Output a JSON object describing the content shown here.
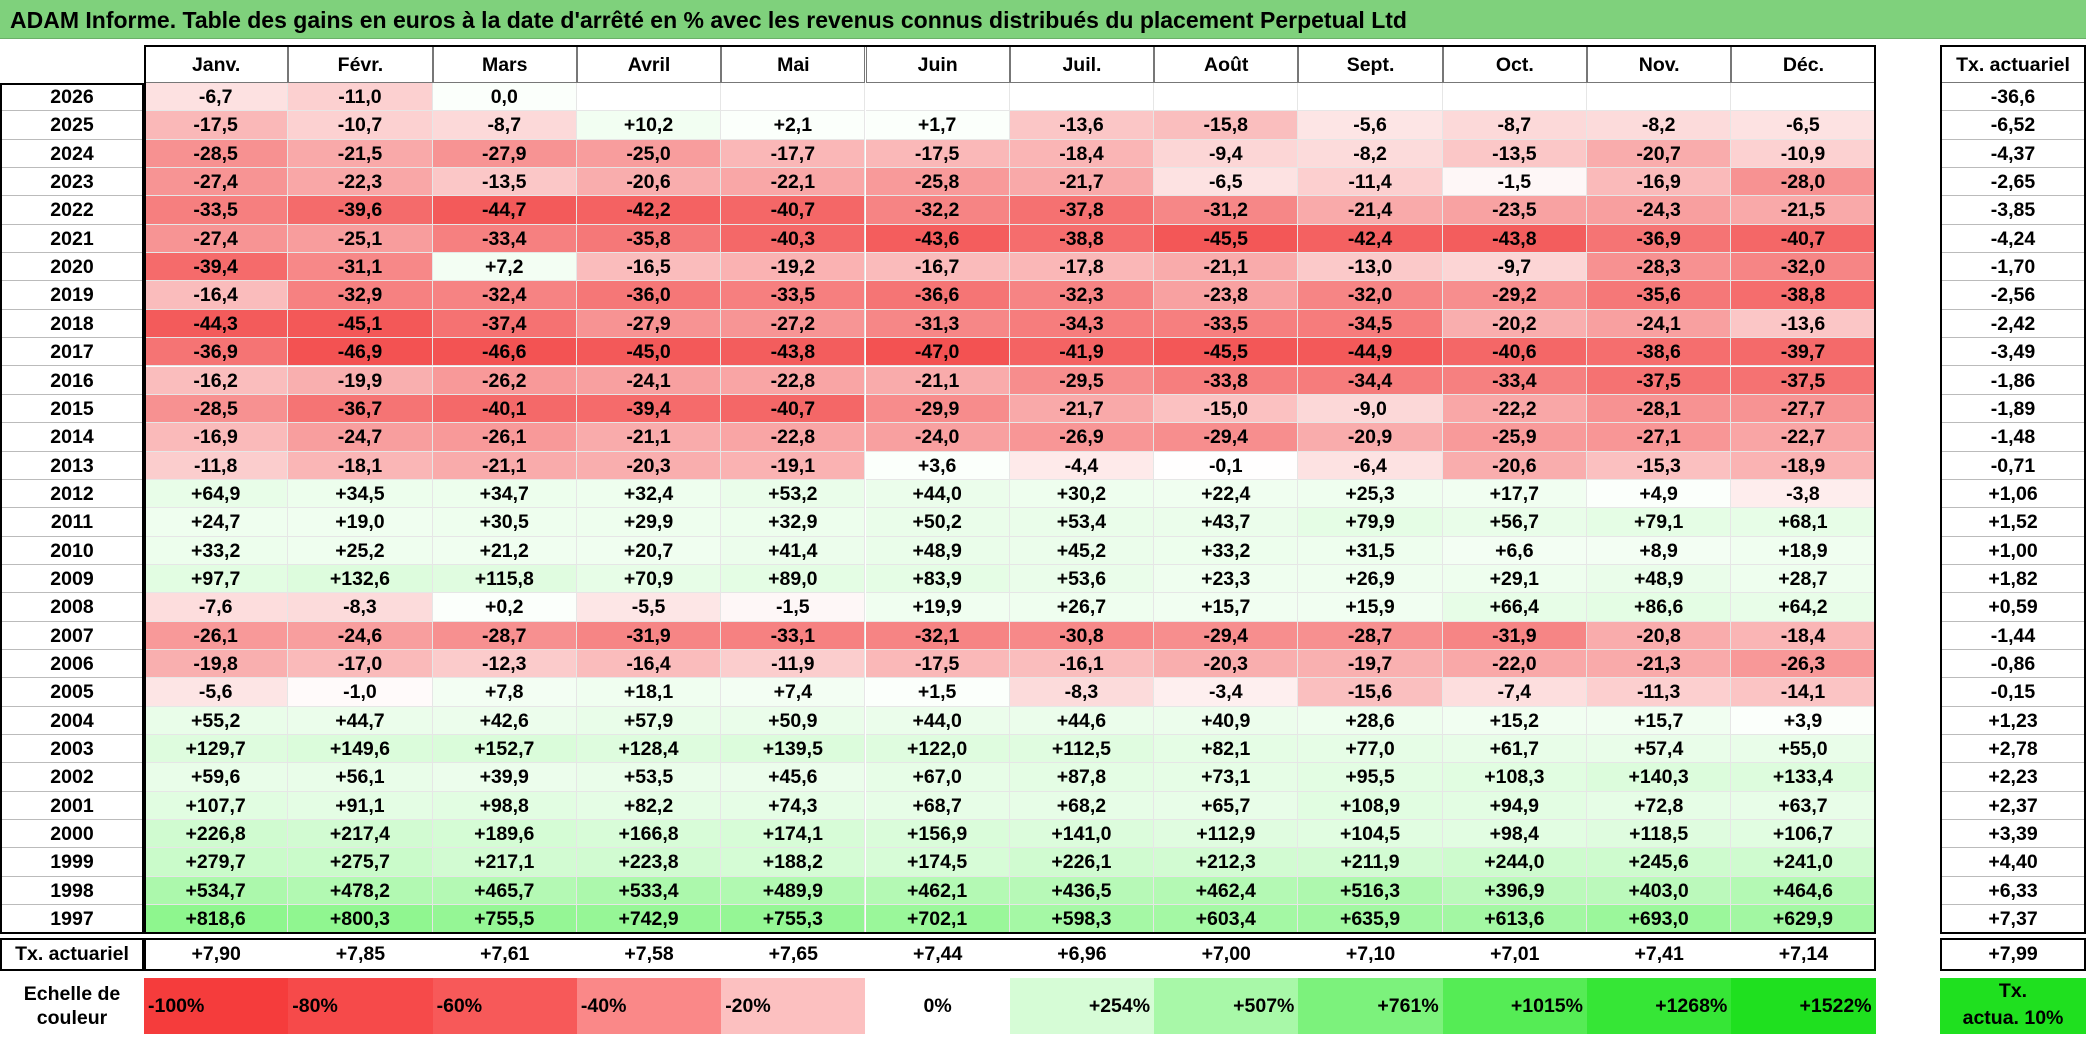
{
  "title": "ADAM Informe. Table des gains en euros à la date d'arrêté en % avec les revenus connus distribués du placement Perpetual Ltd",
  "chart_data": {
    "type": "heatmap",
    "months": [
      "Janv.",
      "Févr.",
      "Mars",
      "Avril",
      "Mai",
      "Juin",
      "Juil.",
      "Août",
      "Sept.",
      "Oct.",
      "Nov.",
      "Déc."
    ],
    "rate_header": "Tx. actuariel",
    "rows": [
      {
        "year": "2026",
        "values": [
          "-6,7",
          "-11,0",
          "0,0",
          "",
          "",
          "",
          "",
          "",
          "",
          "",
          "",
          ""
        ],
        "rate": "-36,6"
      },
      {
        "year": "2025",
        "values": [
          "-17,5",
          "-10,7",
          "-8,7",
          "+10,2",
          "+2,1",
          "+1,7",
          "-13,6",
          "-15,8",
          "-5,6",
          "-8,7",
          "-8,2",
          "-6,5"
        ],
        "rate": "-6,52"
      },
      {
        "year": "2024",
        "values": [
          "-28,5",
          "-21,5",
          "-27,9",
          "-25,0",
          "-17,7",
          "-17,5",
          "-18,4",
          "-9,4",
          "-8,2",
          "-13,5",
          "-20,7",
          "-10,9"
        ],
        "rate": "-4,37"
      },
      {
        "year": "2023",
        "values": [
          "-27,4",
          "-22,3",
          "-13,5",
          "-20,6",
          "-22,1",
          "-25,8",
          "-21,7",
          "-6,5",
          "-11,4",
          "-1,5",
          "-16,9",
          "-28,0"
        ],
        "rate": "-2,65"
      },
      {
        "year": "2022",
        "values": [
          "-33,5",
          "-39,6",
          "-44,7",
          "-42,2",
          "-40,7",
          "-32,2",
          "-37,8",
          "-31,2",
          "-21,4",
          "-23,5",
          "-24,3",
          "-21,5"
        ],
        "rate": "-3,85"
      },
      {
        "year": "2021",
        "values": [
          "-27,4",
          "-25,1",
          "-33,4",
          "-35,8",
          "-40,3",
          "-43,6",
          "-38,8",
          "-45,5",
          "-42,4",
          "-43,8",
          "-36,9",
          "-40,7"
        ],
        "rate": "-4,24"
      },
      {
        "year": "2020",
        "values": [
          "-39,4",
          "-31,1",
          "+7,2",
          "-16,5",
          "-19,2",
          "-16,7",
          "-17,8",
          "-21,1",
          "-13,0",
          "-9,7",
          "-28,3",
          "-32,0"
        ],
        "rate": "-1,70"
      },
      {
        "year": "2019",
        "values": [
          "-16,4",
          "-32,9",
          "-32,4",
          "-36,0",
          "-33,5",
          "-36,6",
          "-32,3",
          "-23,8",
          "-32,0",
          "-29,2",
          "-35,6",
          "-38,8"
        ],
        "rate": "-2,56"
      },
      {
        "year": "2018",
        "values": [
          "-44,3",
          "-45,1",
          "-37,4",
          "-27,9",
          "-27,2",
          "-31,3",
          "-34,3",
          "-33,5",
          "-34,5",
          "-20,2",
          "-24,1",
          "-13,6"
        ],
        "rate": "-2,42"
      },
      {
        "year": "2017",
        "values": [
          "-36,9",
          "-46,9",
          "-46,6",
          "-45,0",
          "-43,8",
          "-47,0",
          "-41,9",
          "-45,5",
          "-44,9",
          "-40,6",
          "-38,6",
          "-39,7"
        ],
        "rate": "-3,49"
      },
      {
        "year": "2016",
        "values": [
          "-16,2",
          "-19,9",
          "-26,2",
          "-24,1",
          "-22,8",
          "-21,1",
          "-29,5",
          "-33,8",
          "-34,4",
          "-33,4",
          "-37,5",
          "-37,5"
        ],
        "rate": "-1,86"
      },
      {
        "year": "2015",
        "values": [
          "-28,5",
          "-36,7",
          "-40,1",
          "-39,4",
          "-40,7",
          "-29,9",
          "-21,7",
          "-15,0",
          "-9,0",
          "-22,2",
          "-28,1",
          "-27,7"
        ],
        "rate": "-1,89"
      },
      {
        "year": "2014",
        "values": [
          "-16,9",
          "-24,7",
          "-26,1",
          "-21,1",
          "-22,8",
          "-24,0",
          "-26,9",
          "-29,4",
          "-20,9",
          "-25,9",
          "-27,1",
          "-22,7"
        ],
        "rate": "-1,48"
      },
      {
        "year": "2013",
        "values": [
          "-11,8",
          "-18,1",
          "-21,1",
          "-20,3",
          "-19,1",
          "+3,6",
          "-4,4",
          "-0,1",
          "-6,4",
          "-20,6",
          "-15,3",
          "-18,9"
        ],
        "rate": "-0,71"
      },
      {
        "year": "2012",
        "values": [
          "+64,9",
          "+34,5",
          "+34,7",
          "+32,4",
          "+53,2",
          "+44,0",
          "+30,2",
          "+22,4",
          "+25,3",
          "+17,7",
          "+4,9",
          "-3,8"
        ],
        "rate": "+1,06"
      },
      {
        "year": "2011",
        "values": [
          "+24,7",
          "+19,0",
          "+30,5",
          "+29,9",
          "+32,9",
          "+50,2",
          "+53,4",
          "+43,7",
          "+79,9",
          "+56,7",
          "+79,1",
          "+68,1"
        ],
        "rate": "+1,52"
      },
      {
        "year": "2010",
        "values": [
          "+33,2",
          "+25,2",
          "+21,2",
          "+20,7",
          "+41,4",
          "+48,9",
          "+45,2",
          "+33,2",
          "+31,5",
          "+6,6",
          "+8,9",
          "+18,9"
        ],
        "rate": "+1,00"
      },
      {
        "year": "2009",
        "values": [
          "+97,7",
          "+132,6",
          "+115,8",
          "+70,9",
          "+89,0",
          "+83,9",
          "+53,6",
          "+23,3",
          "+26,9",
          "+29,1",
          "+48,9",
          "+28,7"
        ],
        "rate": "+1,82"
      },
      {
        "year": "2008",
        "values": [
          "-7,6",
          "-8,3",
          "+0,2",
          "-5,5",
          "-1,5",
          "+19,9",
          "+26,7",
          "+15,7",
          "+15,9",
          "+66,4",
          "+86,6",
          "+64,2"
        ],
        "rate": "+0,59"
      },
      {
        "year": "2007",
        "values": [
          "-26,1",
          "-24,6",
          "-28,7",
          "-31,9",
          "-33,1",
          "-32,1",
          "-30,8",
          "-29,4",
          "-28,7",
          "-31,9",
          "-20,8",
          "-18,4"
        ],
        "rate": "-1,44"
      },
      {
        "year": "2006",
        "values": [
          "-19,8",
          "-17,0",
          "-12,3",
          "-16,4",
          "-11,9",
          "-17,5",
          "-16,1",
          "-20,3",
          "-19,7",
          "-22,0",
          "-21,3",
          "-26,3"
        ],
        "rate": "-0,86"
      },
      {
        "year": "2005",
        "values": [
          "-5,6",
          "-1,0",
          "+7,8",
          "+18,1",
          "+7,4",
          "+1,5",
          "-8,3",
          "-3,4",
          "-15,6",
          "-7,4",
          "-11,3",
          "-14,1"
        ],
        "rate": "-0,15"
      },
      {
        "year": "2004",
        "values": [
          "+55,2",
          "+44,7",
          "+42,6",
          "+57,9",
          "+50,9",
          "+44,0",
          "+44,6",
          "+40,9",
          "+28,6",
          "+15,2",
          "+15,7",
          "+3,9"
        ],
        "rate": "+1,23"
      },
      {
        "year": "2003",
        "values": [
          "+129,7",
          "+149,6",
          "+152,7",
          "+128,4",
          "+139,5",
          "+122,0",
          "+112,5",
          "+82,1",
          "+77,0",
          "+61,7",
          "+57,4",
          "+55,0"
        ],
        "rate": "+2,78"
      },
      {
        "year": "2002",
        "values": [
          "+59,6",
          "+56,1",
          "+39,9",
          "+53,5",
          "+45,6",
          "+67,0",
          "+87,8",
          "+73,1",
          "+95,5",
          "+108,3",
          "+140,3",
          "+133,4"
        ],
        "rate": "+2,23"
      },
      {
        "year": "2001",
        "values": [
          "+107,7",
          "+91,1",
          "+98,8",
          "+82,2",
          "+74,3",
          "+68,7",
          "+68,2",
          "+65,7",
          "+108,9",
          "+94,9",
          "+72,8",
          "+63,7"
        ],
        "rate": "+2,37"
      },
      {
        "year": "2000",
        "values": [
          "+226,8",
          "+217,4",
          "+189,6",
          "+166,8",
          "+174,1",
          "+156,9",
          "+141,0",
          "+112,9",
          "+104,5",
          "+98,4",
          "+118,5",
          "+106,7"
        ],
        "rate": "+3,39"
      },
      {
        "year": "1999",
        "values": [
          "+279,7",
          "+275,7",
          "+217,1",
          "+223,8",
          "+188,2",
          "+174,5",
          "+226,1",
          "+212,3",
          "+211,9",
          "+244,0",
          "+245,6",
          "+241,0"
        ],
        "rate": "+4,40"
      },
      {
        "year": "1998",
        "values": [
          "+534,7",
          "+478,2",
          "+465,7",
          "+533,4",
          "+489,9",
          "+462,1",
          "+436,5",
          "+462,4",
          "+516,3",
          "+396,9",
          "+403,0",
          "+464,6"
        ],
        "rate": "+6,33"
      },
      {
        "year": "1997",
        "values": [
          "+818,6",
          "+800,3",
          "+755,5",
          "+742,9",
          "+755,3",
          "+702,1",
          "+598,3",
          "+603,4",
          "+635,9",
          "+613,6",
          "+693,0",
          "+629,9"
        ],
        "rate": "+7,37"
      }
    ],
    "total_row": {
      "label": "Tx. actuariel",
      "values": [
        "+7,90",
        "+7,85",
        "+7,61",
        "+7,58",
        "+7,65",
        "+7,44",
        "+6,96",
        "+7,00",
        "+7,10",
        "+7,01",
        "+7,41",
        "+7,14"
      ],
      "rate": "+7,99"
    },
    "legend": {
      "label_line1": "Echelle de",
      "label_line2": "couleur",
      "steps": [
        {
          "text": "-100%",
          "color": "#f53c3c"
        },
        {
          "text": "-80%",
          "color": "#f64a4a"
        },
        {
          "text": "-60%",
          "color": "#f75959"
        },
        {
          "text": "-40%",
          "color": "#fa8888"
        },
        {
          "text": "-20%",
          "color": "#fcc0c0"
        },
        {
          "text": "0%",
          "color": "#ffffff"
        },
        {
          "text": "+254%",
          "color": "#d6fcd6"
        },
        {
          "text": "+507%",
          "color": "#a8f8a8"
        },
        {
          "text": "+761%",
          "color": "#7cf27c"
        },
        {
          "text": "+1015%",
          "color": "#55ec55"
        },
        {
          "text": "+1268%",
          "color": "#36e636"
        },
        {
          "text": "+1522%",
          "color": "#1fe01f"
        }
      ],
      "rate_line1": "Tx.",
      "rate_line2": "actua. 10%",
      "rate_color": "#1fe01f"
    }
  }
}
